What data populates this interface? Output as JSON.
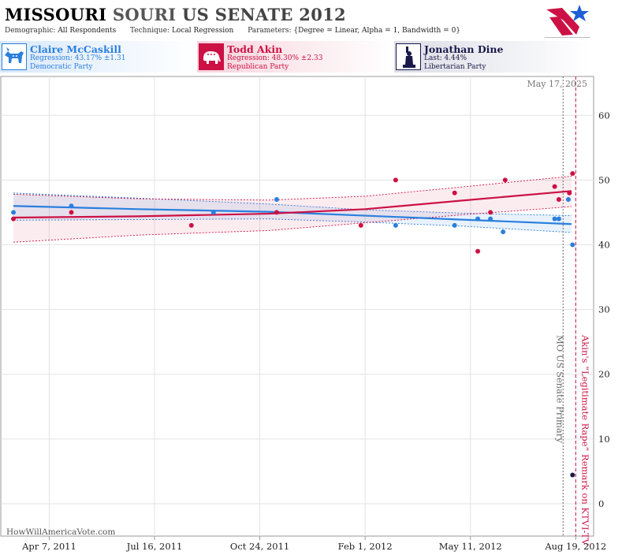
{
  "header": {
    "title_part1": "MISSOURI",
    "title_part2": "SOURI",
    "title_part3": "US SENATE 2012",
    "demographic_label": "Demographic:",
    "demographic_value": "All Respondents",
    "technique_label": "Technique:",
    "technique_value": "Local Regression",
    "parameters_label": "Parameters:",
    "parameters_value": "{Degree = Linear, Alpha = 1, Bandwidth = 0}"
  },
  "colors": {
    "democrat": "#2a7fde",
    "republican": "#cc1144",
    "libertarian": "#1a1a4a"
  },
  "candidates": [
    {
      "name": "Claire McCaskill",
      "line1": "Regression: 43.17% ±1.31",
      "line2": "Democratic Party",
      "icon": "donkey-icon"
    },
    {
      "name": "Todd Akin",
      "line1": "Regression: 48.30% ±2.33",
      "line2": "Republican Party",
      "icon": "elephant-icon"
    },
    {
      "name": "Jonathan Dine",
      "line1": "Last: 4.44%",
      "line2": "Libertarian Party",
      "icon": "statue-of-liberty-icon"
    }
  ],
  "watermark": "HowWillAmericaVote.com",
  "date_label": "May 17, 2025",
  "chart_data": {
    "type": "scatter",
    "x_range": [
      "2011-02-20",
      "2012-09-05"
    ],
    "ylim": [
      -5,
      66
    ],
    "y_ticks": [
      0,
      10,
      20,
      30,
      40,
      50,
      60
    ],
    "x_ticks": [
      {
        "date": "2011-04-07",
        "label": "Apr 7, 2011"
      },
      {
        "date": "2011-07-16",
        "label": "Jul 16, 2011"
      },
      {
        "date": "2011-10-24",
        "label": "Oct 24, 2011"
      },
      {
        "date": "2012-02-01",
        "label": "Feb 1, 2012"
      },
      {
        "date": "2012-05-11",
        "label": "May 11, 2012"
      },
      {
        "date": "2012-08-19",
        "label": "Aug 19, 2012"
      }
    ],
    "grid": true,
    "events": [
      {
        "date": "2012-08-07",
        "label": "MO US Senate Primary",
        "style": "dotted-gray"
      },
      {
        "date": "2012-08-19",
        "label": "Akin's “Legitimate Rape” Remark on KTVI-TV",
        "style": "dashed-red"
      }
    ],
    "series": [
      {
        "name": "Claire McCaskill",
        "polls": [
          {
            "x": "2011-03-04",
            "y": 45
          },
          {
            "x": "2011-04-28",
            "y": 46
          },
          {
            "x": "2011-09-10",
            "y": 45
          },
          {
            "x": "2011-11-09",
            "y": 47
          },
          {
            "x": "2012-03-01",
            "y": 43
          },
          {
            "x": "2012-04-26",
            "y": 43
          },
          {
            "x": "2012-05-18",
            "y": 44
          },
          {
            "x": "2012-05-30",
            "y": 44
          },
          {
            "x": "2012-06-11",
            "y": 42
          },
          {
            "x": "2012-07-30",
            "y": 44
          },
          {
            "x": "2012-08-03",
            "y": 44
          },
          {
            "x": "2012-08-12",
            "y": 47
          },
          {
            "x": "2012-08-16",
            "y": 40
          }
        ],
        "trend": [
          {
            "x": "2011-03-04",
            "y": 46.0,
            "lo": 43.8,
            "hi": 48.0
          },
          {
            "x": "2011-07-01",
            "y": 45.5,
            "lo": 43.9,
            "hi": 47.2
          },
          {
            "x": "2011-11-01",
            "y": 45.1,
            "lo": 44.0,
            "hi": 46.3
          },
          {
            "x": "2012-02-01",
            "y": 44.5,
            "lo": 43.5,
            "hi": 45.4
          },
          {
            "x": "2012-05-01",
            "y": 43.9,
            "lo": 42.9,
            "hi": 44.9
          },
          {
            "x": "2012-08-15",
            "y": 43.2,
            "lo": 41.9,
            "hi": 44.5
          }
        ]
      },
      {
        "name": "Todd Akin",
        "polls": [
          {
            "x": "2011-03-04",
            "y": 44
          },
          {
            "x": "2011-04-28",
            "y": 45
          },
          {
            "x": "2011-08-20",
            "y": 43
          },
          {
            "x": "2011-11-09",
            "y": 45
          },
          {
            "x": "2012-01-28",
            "y": 43
          },
          {
            "x": "2012-03-01",
            "y": 50
          },
          {
            "x": "2012-04-26",
            "y": 48
          },
          {
            "x": "2012-05-18",
            "y": 39
          },
          {
            "x": "2012-05-30",
            "y": 45
          },
          {
            "x": "2012-06-13",
            "y": 50
          },
          {
            "x": "2012-07-30",
            "y": 49
          },
          {
            "x": "2012-08-03",
            "y": 47
          },
          {
            "x": "2012-08-13",
            "y": 48
          },
          {
            "x": "2012-08-16",
            "y": 51
          }
        ],
        "trend": [
          {
            "x": "2011-03-04",
            "y": 44.2,
            "lo": 40.4,
            "hi": 47.8
          },
          {
            "x": "2011-07-01",
            "y": 44.4,
            "lo": 41.5,
            "hi": 47.1
          },
          {
            "x": "2011-11-01",
            "y": 44.8,
            "lo": 42.2,
            "hi": 46.9
          },
          {
            "x": "2012-02-01",
            "y": 45.5,
            "lo": 43.4,
            "hi": 47.5
          },
          {
            "x": "2012-05-01",
            "y": 46.8,
            "lo": 44.6,
            "hi": 48.9
          },
          {
            "x": "2012-08-15",
            "y": 48.3,
            "lo": 45.9,
            "hi": 50.6
          }
        ]
      },
      {
        "name": "Jonathan Dine",
        "polls": [
          {
            "x": "2012-08-16",
            "y": 4.44
          }
        ]
      }
    ]
  }
}
